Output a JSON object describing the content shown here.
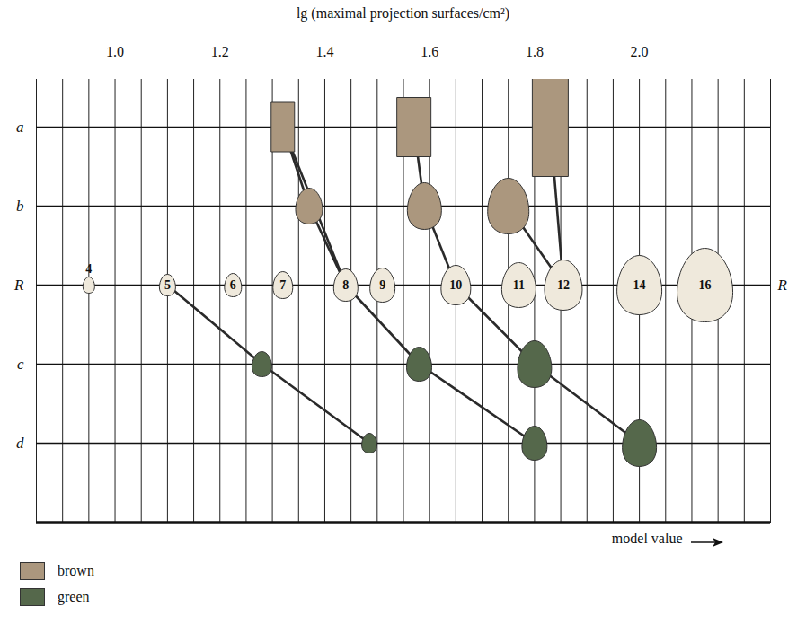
{
  "chart_data": {
    "type": "scatter",
    "title": "lg (maximal projection surfaces/cm²)",
    "xlim": [
      0.85,
      2.25
    ],
    "xticks": [
      {
        "value": 0.85,
        "label": null
      },
      {
        "value": 0.9,
        "label": null
      },
      {
        "value": 0.95,
        "label": null
      },
      {
        "value": 1,
        "label": "1.0"
      },
      {
        "value": 1.05,
        "label": null
      },
      {
        "value": 1.1,
        "label": null
      },
      {
        "value": 1.15,
        "label": null
      },
      1.2,
      {
        "value": 1.25,
        "label": null
      },
      {
        "value": 1.3,
        "label": null
      },
      {
        "value": 1.35,
        "label": null
      },
      1.4,
      {
        "value": 1.45,
        "label": null
      },
      {
        "value": 1.5,
        "label": null
      },
      {
        "value": 1.55,
        "label": null
      },
      1.6,
      {
        "value": 1.65,
        "label": null
      },
      {
        "value": 1.7,
        "label": null
      },
      {
        "value": 1.75,
        "label": null
      },
      1.8,
      {
        "value": 1.85,
        "label": null
      },
      {
        "value": 1.9,
        "label": null
      },
      {
        "value": 1.95,
        "label": null
      },
      {
        "value": 2,
        "label": "2.0"
      },
      {
        "value": 2.05,
        "label": null
      },
      {
        "value": 2.1,
        "label": null
      },
      {
        "value": 2.15,
        "label": null
      },
      {
        "value": 2.2,
        "label": null
      },
      {
        "value": 2.25,
        "label": null
      }
    ],
    "grid": true,
    "categories": [
      "a",
      "b",
      "R",
      "c",
      "d",
      null
    ],
    "series": [
      {
        "name": "brown",
        "category": "a",
        "marker": "box",
        "color": "#ab977e",
        "x": [
          1.32,
          1.57,
          1.83
        ],
        "widths": [
          26,
          38,
          40
        ],
        "heights": [
          55,
          66,
          110
        ]
      },
      {
        "name": "brown",
        "category": "b",
        "marker": "egg",
        "color": "#ab977e",
        "x": [
          1.37,
          1.59,
          1.75
        ],
        "widths": [
          30,
          38,
          46
        ],
        "heights": [
          40,
          52,
          62
        ]
      },
      {
        "category": "R",
        "marker": "egg",
        "color": "#efe9dc",
        "x": [
          0.95,
          1.1,
          1.225,
          1.32,
          1.44,
          1.51,
          1.65,
          1.77,
          1.855,
          2.0,
          2.125
        ],
        "widths": [
          13,
          18,
          19,
          22,
          27,
          28,
          33,
          38,
          42,
          50,
          62
        ],
        "heights": [
          18,
          24,
          26,
          30,
          36,
          38,
          44,
          50,
          56,
          66,
          82
        ],
        "labels": [
          "4",
          "5",
          "6",
          "7",
          "8",
          "9",
          "10",
          "11",
          "12",
          "14",
          "16"
        ]
      },
      {
        "name": "green",
        "category": "c",
        "marker": "egg",
        "color": "#55684b",
        "x": [
          1.28,
          1.58,
          1.8
        ],
        "widths": [
          22,
          28,
          38
        ],
        "heights": [
          28,
          38,
          52
        ]
      },
      {
        "name": "green",
        "category": "d",
        "marker": "egg",
        "color": "#55684b",
        "x": [
          1.485,
          1.8,
          2.0
        ],
        "widths": [
          17,
          28,
          38
        ],
        "heights": [
          22,
          38,
          52
        ]
      }
    ],
    "links": [
      [
        [
          0,
          0
        ],
        [
          1,
          0
        ],
        [
          2,
          4
        ]
      ],
      [
        [
          0,
          0
        ],
        [
          2,
          4
        ]
      ],
      [
        [
          0,
          1
        ],
        [
          1,
          1
        ],
        [
          2,
          6
        ]
      ],
      [
        [
          0,
          2
        ],
        [
          2,
          8
        ]
      ],
      [
        [
          1,
          2
        ],
        [
          2,
          8
        ]
      ],
      [
        [
          2,
          1
        ],
        [
          3,
          0
        ],
        [
          4,
          0
        ]
      ],
      [
        [
          2,
          4
        ],
        [
          3,
          1
        ],
        [
          4,
          1
        ]
      ],
      [
        [
          2,
          6
        ],
        [
          3,
          2
        ],
        [
          4,
          2
        ]
      ]
    ],
    "annotations": [
      {
        "text": "R",
        "category": "R",
        "anchor": "right"
      },
      {
        "text": "model value",
        "anchor": "bottom-right",
        "arrow": true
      }
    ],
    "legend": "bottom-left"
  }
}
